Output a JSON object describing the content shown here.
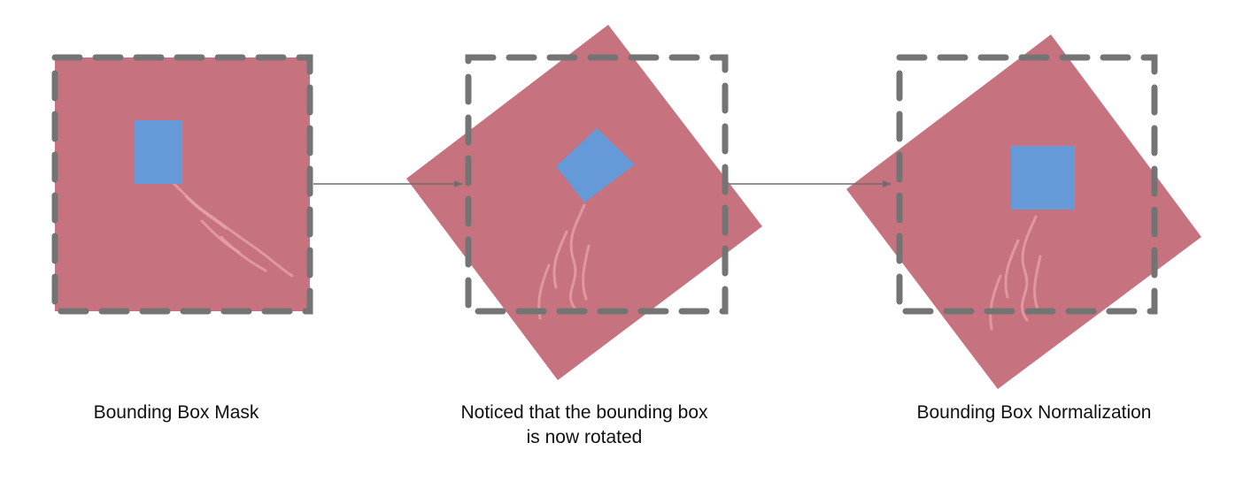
{
  "colors": {
    "image_fill": "#c6737f",
    "image_texture": "#e7a3ab",
    "bbox_fill": "#6699d8",
    "frame_stroke": "#747474",
    "arrow": "#6f6f6f"
  },
  "panels": [
    {
      "id": "mask",
      "caption_lines": [
        "Bounding Box Mask"
      ]
    },
    {
      "id": "rotated",
      "caption_lines": [
        "Noticed that the bounding box",
        "is now rotated"
      ]
    },
    {
      "id": "normalized",
      "caption_lines": [
        "Bounding Box Normalization"
      ]
    }
  ],
  "arrows": [
    {
      "from": "mask",
      "to": "rotated"
    },
    {
      "from": "rotated",
      "to": "normalized"
    }
  ]
}
